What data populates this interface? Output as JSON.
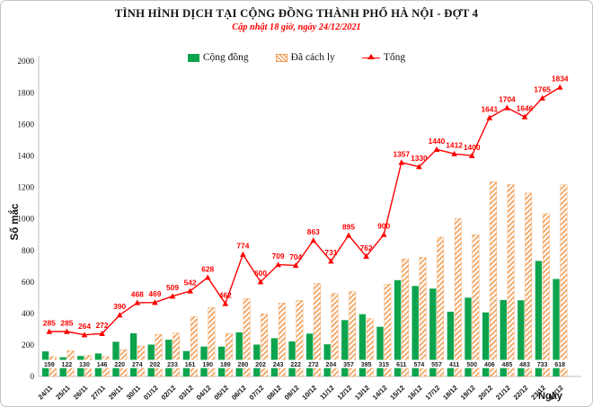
{
  "title": "TÌNH HÌNH DỊCH TẠI CỘNG ĐỒNG THÀNH PHỐ HÀ NỘI - ĐỢT 4",
  "subtitle": "Cập nhật 18 giờ, ngày 24/12/2021",
  "colors": {
    "community_green": "#0EA44E",
    "quarantine_orange": "#F2A05A",
    "total_red": "#FE0000",
    "axis_gray": "#BFBFBF",
    "subtitle_red": "#FE0000"
  },
  "chart_data": {
    "type": "bar",
    "subtype": "clustered bars with overlaid line",
    "title": "TÌNH HÌNH DỊCH TẠI CỘNG ĐỒNG THÀNH PHỐ HÀ NỘI - ĐỢT 4",
    "subtitle": "Cập nhật 18 giờ, ngày 24/12/2021",
    "xlabel": "Ngày",
    "ylabel": "Số mắc",
    "ylim": [
      0,
      2000
    ],
    "y_ticks": [
      0,
      200,
      400,
      600,
      800,
      1000,
      1200,
      1400,
      1600,
      1800,
      2000
    ],
    "grid": false,
    "legend_position": "top-center",
    "categories": [
      "24/11",
      "25/11",
      "26/11",
      "27/11",
      "29/11",
      "30/11",
      "01/12",
      "02/12",
      "03/12",
      "04/12",
      "05/12",
      "06/12",
      "07/12",
      "08/12",
      "09/12",
      "10/12",
      "11/12",
      "12/12",
      "13/12",
      "14/12",
      "15/12",
      "16/12",
      "17/12",
      "18/12",
      "19/12",
      "20/12",
      "21/12",
      "22/12",
      "23/12",
      "24/12"
    ],
    "series": [
      {
        "name": "Cộng đồng",
        "type": "bar",
        "style": "solid",
        "color": "#0EA44E",
        "values": [
          159,
          122,
          130,
          146,
          220,
          274,
          202,
          233,
          161,
          190,
          189,
          280,
          202,
          243,
          222,
          272,
          204,
          357,
          395,
          315,
          611,
          574,
          557,
          411,
          500,
          406,
          485,
          483,
          733,
          618
        ],
        "value_labels_shown": "at base of bars in white boxes"
      },
      {
        "name": "Đã cách ly",
        "type": "bar",
        "style": "hatched",
        "color": "#F2A05A",
        "values": [
          126,
          163,
          134,
          126,
          170,
          194,
          267,
          276,
          381,
          438,
          273,
          494,
          398,
          466,
          482,
          591,
          527,
          538,
          367,
          585,
          746,
          756,
          883,
          1001,
          900,
          1235,
          1219,
          1163,
          1032,
          1216
        ],
        "value_labels_shown": "none"
      },
      {
        "name": "Tổng",
        "type": "line",
        "marker": "triangle-up",
        "color": "#FE0000",
        "values": [
          285,
          285,
          264,
          272,
          390,
          468,
          469,
          509,
          542,
          628,
          462,
          774,
          600,
          709,
          704,
          863,
          731,
          895,
          762,
          900,
          1357,
          1330,
          1440,
          1412,
          1400,
          1641,
          1704,
          1646,
          1765,
          1834
        ],
        "value_labels_shown": "above each marker"
      }
    ]
  }
}
